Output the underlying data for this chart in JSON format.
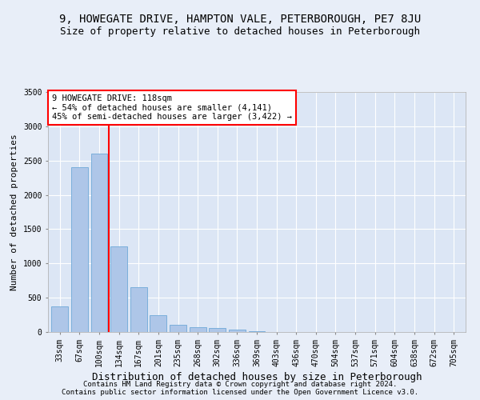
{
  "title_line1": "9, HOWEGATE DRIVE, HAMPTON VALE, PETERBOROUGH, PE7 8JU",
  "title_line2": "Size of property relative to detached houses in Peterborough",
  "xlabel": "Distribution of detached houses by size in Peterborough",
  "ylabel": "Number of detached properties",
  "categories": [
    "33sqm",
    "67sqm",
    "100sqm",
    "134sqm",
    "167sqm",
    "201sqm",
    "235sqm",
    "268sqm",
    "302sqm",
    "336sqm",
    "369sqm",
    "403sqm",
    "436sqm",
    "470sqm",
    "504sqm",
    "537sqm",
    "571sqm",
    "604sqm",
    "638sqm",
    "672sqm",
    "705sqm"
  ],
  "values": [
    375,
    2400,
    2600,
    1250,
    650,
    250,
    110,
    75,
    60,
    35,
    10,
    5,
    3,
    2,
    1,
    1,
    0,
    0,
    0,
    0,
    0
  ],
  "bar_color": "#aec6e8",
  "bar_edge_color": "#6ea8d8",
  "bar_width": 0.85,
  "vline_x": 2.5,
  "vline_color": "red",
  "annotation_text": "9 HOWEGATE DRIVE: 118sqm\n← 54% of detached houses are smaller (4,141)\n45% of semi-detached houses are larger (3,422) →",
  "annotation_box_color": "white",
  "annotation_box_edge": "red",
  "ylim": [
    0,
    3500
  ],
  "yticks": [
    0,
    500,
    1000,
    1500,
    2000,
    2500,
    3000,
    3500
  ],
  "footer_line1": "Contains HM Land Registry data © Crown copyright and database right 2024.",
  "footer_line2": "Contains public sector information licensed under the Open Government Licence v3.0.",
  "bg_color": "#e8eef8",
  "plot_bg_color": "#dce6f5",
  "grid_color": "white",
  "title_fontsize": 10,
  "subtitle_fontsize": 9,
  "xlabel_fontsize": 9,
  "ylabel_fontsize": 8,
  "tick_fontsize": 7,
  "annotation_fontsize": 7.5,
  "footer_fontsize": 6.5
}
